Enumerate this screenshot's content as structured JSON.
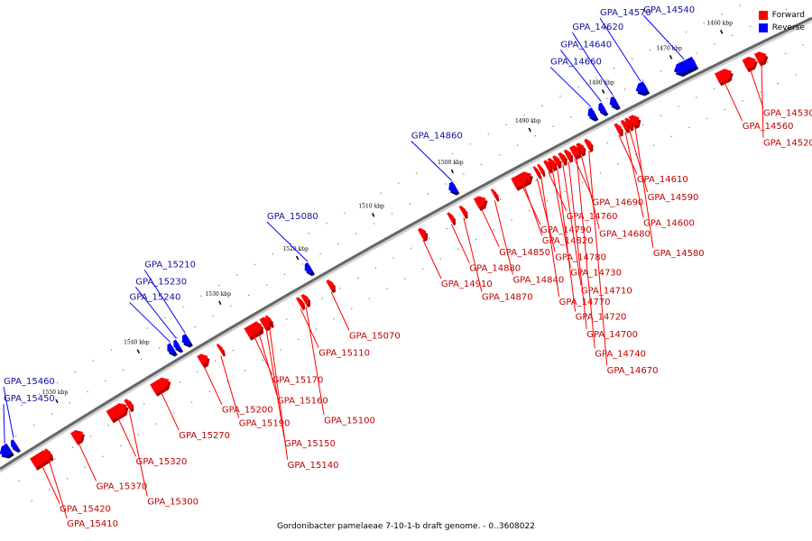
{
  "legend": {
    "forward": "Forward",
    "reverse": "Reverse"
  },
  "colors": {
    "forward": "#ff0000",
    "reverse": "#0000ff",
    "backbone": "#666666"
  },
  "caption": "Gordonibacter pamelaeae 7-10-1-b draft genome. - 0..3608022",
  "ticks": [
    {
      "label": "1460 kbp",
      "t": 0.905
    },
    {
      "label": "1470 kbp",
      "t": 0.843
    },
    {
      "label": "1480 kbp",
      "t": 0.76
    },
    {
      "label": "1490 kbp",
      "t": 0.67
    },
    {
      "label": "1500 kbp",
      "t": 0.575
    },
    {
      "label": "1510 kbp",
      "t": 0.478
    },
    {
      "label": "1520 kbp",
      "t": 0.385
    },
    {
      "label": "1530 kbp",
      "t": 0.29
    },
    {
      "label": "1540 kbp",
      "t": 0.19
    },
    {
      "label": "1550 kbp",
      "t": 0.09
    }
  ],
  "genes": [
    {
      "name": "GPA_14520",
      "strand": "forward",
      "t": 0.925,
      "len": 0.012
    },
    {
      "name": "GPA_14530",
      "strand": "forward",
      "t": 0.91,
      "len": 0.014
    },
    {
      "name": "GPA_14540",
      "strand": "reverse",
      "t": 0.837,
      "len": 0.025
    },
    {
      "name": "GPA_14560",
      "strand": "forward",
      "t": 0.876,
      "len": 0.018
    },
    {
      "name": "GPA_14570",
      "strand": "reverse",
      "t": 0.79,
      "len": 0.012
    },
    {
      "name": "GPA_14580",
      "strand": "forward",
      "t": 0.77,
      "len": 0.01
    },
    {
      "name": "GPA_14590",
      "strand": "forward",
      "t": 0.765,
      "len": 0.006
    },
    {
      "name": "GPA_14600",
      "strand": "forward",
      "t": 0.76,
      "len": 0.006
    },
    {
      "name": "GPA_14610",
      "strand": "forward",
      "t": 0.752,
      "len": 0.006
    },
    {
      "name": "GPA_14620",
      "strand": "reverse",
      "t": 0.758,
      "len": 0.008
    },
    {
      "name": "GPA_14640",
      "strand": "reverse",
      "t": 0.744,
      "len": 0.007
    },
    {
      "name": "GPA_14660",
      "strand": "reverse",
      "t": 0.731,
      "len": 0.008
    },
    {
      "name": "GPA_14670",
      "strand": "forward",
      "t": 0.715,
      "len": 0.006
    },
    {
      "name": "GPA_14680",
      "strand": "forward",
      "t": 0.705,
      "len": 0.007
    },
    {
      "name": "GPA_14690",
      "strand": "forward",
      "t": 0.697,
      "len": 0.006
    },
    {
      "name": "GPA_14700",
      "strand": "forward",
      "t": 0.69,
      "len": 0.006
    },
    {
      "name": "GPA_14710",
      "strand": "forward",
      "t": 0.683,
      "len": 0.006
    },
    {
      "name": "GPA_14720",
      "strand": "forward",
      "t": 0.676,
      "len": 0.006
    },
    {
      "name": "GPA_14730",
      "strand": "forward",
      "t": 0.67,
      "len": 0.006
    },
    {
      "name": "GPA_14740",
      "strand": "forward",
      "t": 0.7,
      "len": 0.006
    },
    {
      "name": "GPA_14760",
      "strand": "forward",
      "t": 0.665,
      "len": 0.006
    },
    {
      "name": "GPA_14770",
      "strand": "forward",
      "t": 0.657,
      "len": 0.004
    },
    {
      "name": "GPA_14780",
      "strand": "forward",
      "t": 0.652,
      "len": 0.004
    },
    {
      "name": "GPA_14790",
      "strand": "forward",
      "t": 0.625,
      "len": 0.022
    },
    {
      "name": "GPA_14820",
      "strand": "forward",
      "t": 0.635,
      "len": 0.006
    },
    {
      "name": "GPA_14840",
      "strand": "forward",
      "t": 0.6,
      "len": 0.004
    },
    {
      "name": "GPA_14850",
      "strand": "forward",
      "t": 0.579,
      "len": 0.012
    },
    {
      "name": "GPA_14860",
      "strand": "reverse",
      "t": 0.56,
      "len": 0.008
    },
    {
      "name": "GPA_14870",
      "strand": "forward",
      "t": 0.561,
      "len": 0.005
    },
    {
      "name": "GPA_14880",
      "strand": "forward",
      "t": 0.546,
      "len": 0.005
    },
    {
      "name": "GPA_14910",
      "strand": "forward",
      "t": 0.51,
      "len": 0.007
    },
    {
      "name": "GPA_15070",
      "strand": "forward",
      "t": 0.397,
      "len": 0.006
    },
    {
      "name": "GPA_15080",
      "strand": "reverse",
      "t": 0.383,
      "len": 0.007
    },
    {
      "name": "GPA_15100",
      "strand": "forward",
      "t": 0.366,
      "len": 0.006
    },
    {
      "name": "GPA_15110",
      "strand": "forward",
      "t": 0.36,
      "len": 0.005
    },
    {
      "name": "GPA_15140",
      "strand": "forward",
      "t": 0.322,
      "len": 0.004
    },
    {
      "name": "GPA_15150",
      "strand": "forward",
      "t": 0.315,
      "len": 0.01
    },
    {
      "name": "GPA_15160",
      "strand": "forward",
      "t": 0.308,
      "len": 0.006
    },
    {
      "name": "GPA_15170",
      "strand": "forward",
      "t": 0.296,
      "len": 0.018
    },
    {
      "name": "GPA_15190",
      "strand": "forward",
      "t": 0.262,
      "len": 0.004
    },
    {
      "name": "GPA_15200",
      "strand": "forward",
      "t": 0.238,
      "len": 0.01
    },
    {
      "name": "GPA_15210",
      "strand": "reverse",
      "t": 0.232,
      "len": 0.008
    },
    {
      "name": "GPA_15230",
      "strand": "reverse",
      "t": 0.222,
      "len": 0.006
    },
    {
      "name": "GPA_15240",
      "strand": "reverse",
      "t": 0.214,
      "len": 0.007
    },
    {
      "name": "GPA_15270",
      "strand": "forward",
      "t": 0.18,
      "len": 0.02
    },
    {
      "name": "GPA_15300",
      "strand": "forward",
      "t": 0.148,
      "len": 0.006
    },
    {
      "name": "GPA_15320",
      "strand": "forward",
      "t": 0.126,
      "len": 0.022
    },
    {
      "name": "GPA_15370",
      "strand": "forward",
      "t": 0.082,
      "len": 0.012
    },
    {
      "name": "GPA_15410",
      "strand": "forward",
      "t": 0.05,
      "len": 0.004
    },
    {
      "name": "GPA_15420",
      "strand": "forward",
      "t": 0.032,
      "len": 0.022
    },
    {
      "name": "GPA_15450",
      "strand": "reverse",
      "t": 0.008,
      "len": 0.012
    },
    {
      "name": "GPA_15460",
      "strand": "reverse",
      "t": 0.022,
      "len": 0.006
    }
  ]
}
